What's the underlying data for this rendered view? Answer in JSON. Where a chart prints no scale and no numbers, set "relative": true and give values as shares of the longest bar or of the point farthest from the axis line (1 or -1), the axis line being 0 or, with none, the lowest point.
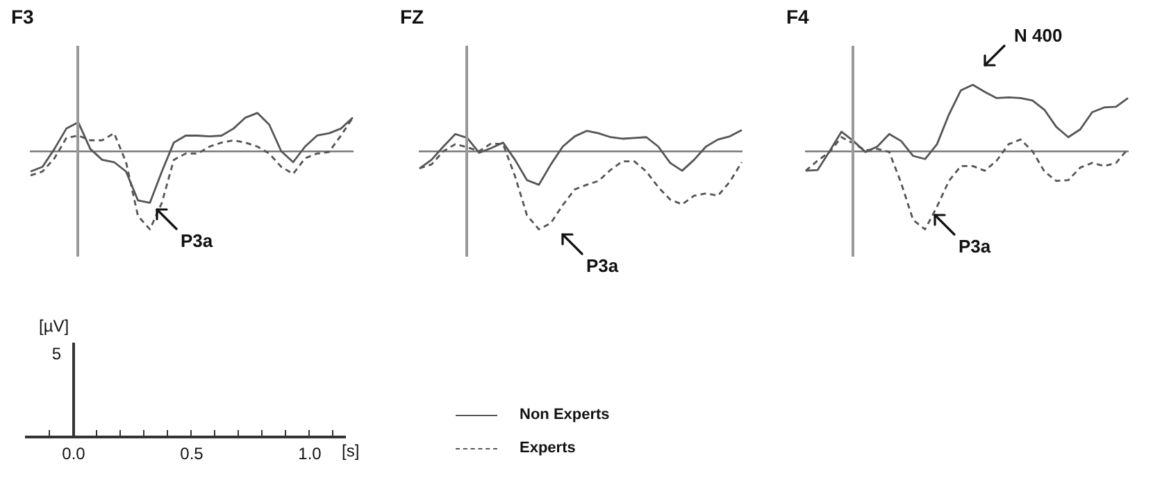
{
  "chart_data": [
    {
      "type": "line",
      "title": "F3",
      "relative": true,
      "marker": "none",
      "legend": "bottom",
      "annotations": [
        "P3a"
      ],
      "categories": [
        null,
        null,
        null,
        null,
        null,
        null,
        null,
        null,
        null,
        null,
        null,
        null,
        null,
        null,
        null,
        null,
        null,
        null,
        null,
        null,
        null,
        null,
        null,
        null,
        null,
        null,
        null,
        null
      ],
      "series": [
        {
          "name": "Non Experts",
          "color": "#555555",
          "line_style": "solid",
          "values": [
            -0.26,
            -0.2,
            0.03,
            0.29,
            0.37,
            0.03,
            -0.11,
            -0.14,
            -0.26,
            -0.63,
            -0.66,
            -0.26,
            0.11,
            0.2,
            0.2,
            0.19,
            0.2,
            0.29,
            0.43,
            0.49,
            0.34,
            0,
            -0.14,
            0.06,
            0.2,
            0.23,
            0.29,
            0.43
          ]
        },
        {
          "name": "Experts",
          "color": "#555555",
          "line_style": "dashed",
          "values": [
            -0.31,
            -0.26,
            -0.09,
            0.17,
            0.2,
            0.14,
            0.14,
            0.23,
            -0.14,
            -0.83,
            -1,
            -0.66,
            -0.11,
            -0.03,
            -0.03,
            0.06,
            0.11,
            0.14,
            0.11,
            0.06,
            -0.03,
            -0.2,
            -0.29,
            -0.09,
            -0.03,
            -0.01,
            0.2,
            0.43
          ]
        }
      ]
    },
    {
      "type": "line",
      "title": "FZ",
      "relative": true,
      "marker": "none",
      "annotations": [
        "P3a"
      ],
      "categories": [
        null,
        null,
        null,
        null,
        null,
        null,
        null,
        null,
        null,
        null,
        null,
        null,
        null,
        null,
        null,
        null,
        null,
        null,
        null,
        null,
        null,
        null,
        null,
        null,
        null,
        null,
        null,
        null
      ],
      "series": [
        {
          "color": "#555555",
          "line_style": "solid",
          "values": [
            -0.22,
            -0.11,
            0.06,
            0.22,
            0.17,
            -0.02,
            0.04,
            0.11,
            -0.11,
            -0.37,
            -0.43,
            -0.17,
            0.06,
            0.19,
            0.26,
            0.23,
            0.18,
            0.16,
            0.17,
            0.18,
            0.06,
            -0.15,
            -0.25,
            -0.11,
            0.06,
            0.15,
            0.19,
            0.27
          ]
        },
        {
          "color": "#555555",
          "line_style": "dashed",
          "values": [
            -0.22,
            -0.17,
            0,
            0.09,
            0.05,
            0,
            0.1,
            0.09,
            -0.32,
            -0.82,
            -1,
            -0.92,
            -0.69,
            -0.49,
            -0.43,
            -0.38,
            -0.24,
            -0.13,
            -0.13,
            -0.26,
            -0.46,
            -0.62,
            -0.68,
            -0.57,
            -0.54,
            -0.57,
            -0.39,
            -0.14
          ]
        }
      ]
    },
    {
      "type": "line",
      "title": "F4",
      "relative": true,
      "marker": "none",
      "annotations": [
        "N 400",
        "P3a"
      ],
      "categories": [
        null,
        null,
        null,
        null,
        null,
        null,
        null,
        null,
        null,
        null,
        null,
        null,
        null,
        null,
        null,
        null,
        null,
        null,
        null,
        null,
        null,
        null,
        null,
        null,
        null,
        null,
        null,
        null
      ],
      "series": [
        {
          "color": "#555555",
          "line_style": "solid",
          "values": [
            -0.25,
            -0.24,
            0,
            0.25,
            0.13,
            -0.01,
            0.06,
            0.22,
            0.13,
            -0.06,
            -0.1,
            0.09,
            0.47,
            0.78,
            0.85,
            0.76,
            0.68,
            0.69,
            0.68,
            0.65,
            0.53,
            0.31,
            0.18,
            0.28,
            0.5,
            0.56,
            0.57,
            0.68
          ]
        },
        {
          "color": "#555555",
          "line_style": "dashed",
          "values": [
            -0.25,
            -0.12,
            -0.01,
            0.18,
            0.1,
            0.01,
            0.03,
            -0.01,
            -0.41,
            -0.88,
            -1,
            -0.71,
            -0.38,
            -0.19,
            -0.19,
            -0.25,
            -0.12,
            0.09,
            0.15,
            0,
            -0.26,
            -0.38,
            -0.37,
            -0.21,
            -0.15,
            -0.19,
            -0.15,
            0.03
          ]
        }
      ]
    },
    {
      "type": "other",
      "xlabel": "[s]",
      "ylabel": "[µV]",
      "annotations": [
        "5",
        "0.0",
        "0.5",
        "1.0"
      ]
    }
  ]
}
